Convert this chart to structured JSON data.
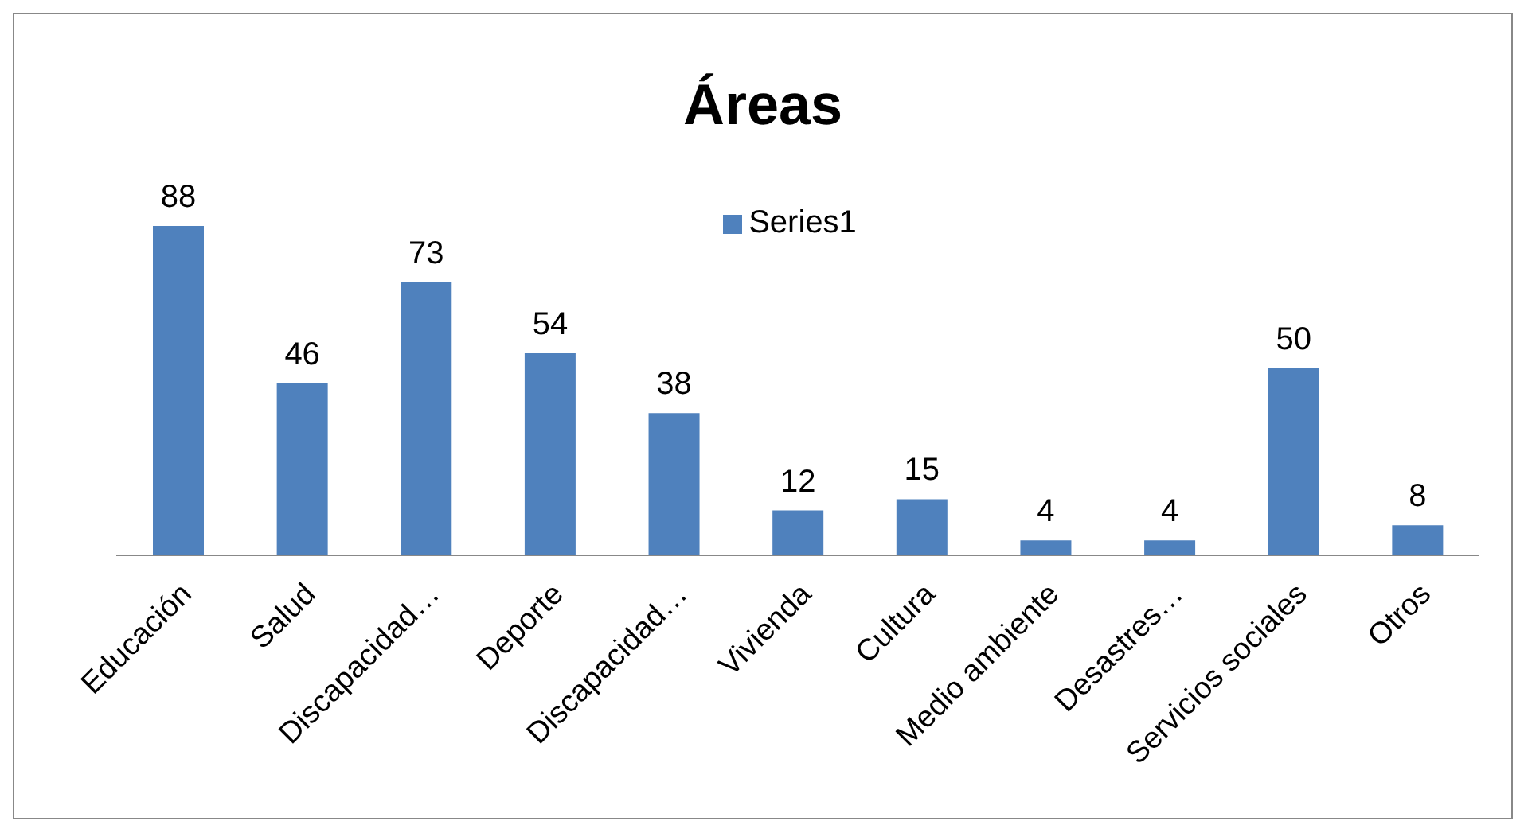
{
  "chart_data": {
    "type": "bar",
    "title": "Áreas",
    "categories": [
      "Educación",
      "Salud",
      "Discapacidad…",
      "Deporte",
      "Discapacidad…",
      "Vivienda",
      "Cultura",
      "Medio ambiente",
      "Desastres…",
      "Servicios sociales",
      "Otros"
    ],
    "series": [
      {
        "name": "Series1",
        "color": "#4f81bd",
        "values": [
          88,
          46,
          73,
          54,
          38,
          12,
          15,
          4,
          4,
          50,
          8
        ]
      }
    ],
    "data_labels": true,
    "legend": "top",
    "grid": false
  }
}
